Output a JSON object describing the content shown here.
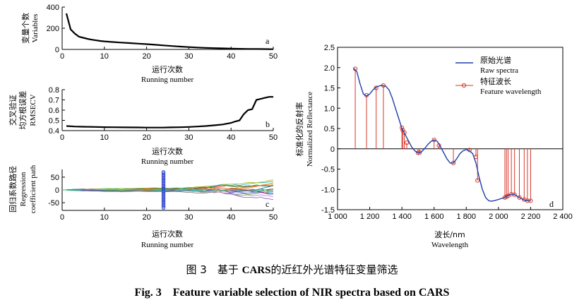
{
  "chart_data": [
    {
      "panel": "a",
      "type": "line",
      "ylabel_zh": "变量个数",
      "ylabel_en": "Variables",
      "xlabel_zh": "运行次数",
      "xlabel_en": "Running number",
      "xlim": [
        0,
        50
      ],
      "ylim": [
        0,
        400
      ],
      "xticks": [
        "0",
        "10",
        "20",
        "30",
        "40",
        "50"
      ],
      "yticks": [
        "0",
        "200",
        "400"
      ],
      "x": [
        1,
        2,
        3,
        4,
        5,
        6,
        7,
        8,
        9,
        10,
        12,
        14,
        16,
        18,
        20,
        22,
        24,
        26,
        28,
        30,
        32,
        34,
        36,
        38,
        40,
        42,
        44,
        46,
        48,
        50
      ],
      "values": [
        340,
        190,
        150,
        120,
        110,
        100,
        92,
        86,
        80,
        76,
        70,
        65,
        60,
        55,
        50,
        44,
        38,
        32,
        27,
        22,
        18,
        15,
        12,
        10,
        8,
        6,
        5,
        4,
        3,
        2
      ]
    },
    {
      "panel": "b",
      "type": "line",
      "ylabel_zh1": "交叉验证",
      "ylabel_zh2": "均方根误差",
      "ylabel_en": "RMSECV",
      "xlabel_zh": "运行次数",
      "xlabel_en": "Running number",
      "xlim": [
        0,
        50
      ],
      "ylim": [
        0.4,
        0.8
      ],
      "xticks": [
        "0",
        "10",
        "20",
        "30",
        "40",
        "50"
      ],
      "yticks": [
        "0.4",
        "0.5",
        "0.6",
        "0.7",
        "0.8"
      ],
      "x": [
        1,
        3,
        5,
        8,
        10,
        12,
        15,
        18,
        20,
        22,
        24,
        25,
        26,
        28,
        30,
        32,
        34,
        36,
        38,
        40,
        41,
        42,
        43,
        44,
        45,
        46,
        47,
        48,
        49,
        50
      ],
      "values": [
        0.445,
        0.44,
        0.438,
        0.436,
        0.434,
        0.433,
        0.432,
        0.431,
        0.43,
        0.43,
        0.43,
        0.431,
        0.432,
        0.433,
        0.436,
        0.44,
        0.445,
        0.452,
        0.46,
        0.475,
        0.49,
        0.5,
        0.56,
        0.6,
        0.61,
        0.7,
        0.71,
        0.72,
        0.73,
        0.73
      ]
    },
    {
      "panel": "c",
      "type": "line",
      "ylabel_zh": "回归系数路径",
      "ylabel_en1": "Regression",
      "ylabel_en2": "coefficient path",
      "xlabel_zh": "运行次数",
      "xlabel_en": "Running number",
      "xlim": [
        0,
        50
      ],
      "ylim": [
        -80,
        80
      ],
      "xticks": [
        "0",
        "10",
        "20",
        "30",
        "40",
        "50"
      ],
      "yticks": [
        "-50",
        "0",
        "50"
      ],
      "marker_x": 24
    },
    {
      "panel": "d",
      "type": "line",
      "ylabel_zh": "标准化的反射率",
      "ylabel_en": "Normalized Reflectance",
      "xlabel_zh": "波长/nm",
      "xlabel_en": "Wavelength",
      "xlim": [
        1000,
        2400
      ],
      "ylim": [
        -1.5,
        2.5
      ],
      "xticks": [
        "1 000",
        "1 200",
        "1 400",
        "1 600",
        "1 800",
        "2 000",
        "2 200",
        "2 400"
      ],
      "yticks": [
        "-1.5",
        "-1.0",
        "-0.5",
        "0",
        "0.5",
        "1.0",
        "1.5",
        "2.0",
        "2.5"
      ],
      "legend": [
        {
          "zh": "原始光谱",
          "en": "Raw spectra",
          "color": "#1f3fa8"
        },
        {
          "zh": "特征波长",
          "en": "Feature wavelength",
          "color": "#d8372a"
        }
      ],
      "spectrum_x": [
        1100,
        1120,
        1140,
        1160,
        1180,
        1200,
        1220,
        1240,
        1260,
        1280,
        1300,
        1320,
        1340,
        1360,
        1380,
        1400,
        1420,
        1440,
        1460,
        1480,
        1500,
        1520,
        1540,
        1560,
        1580,
        1600,
        1620,
        1640,
        1660,
        1680,
        1700,
        1720,
        1740,
        1760,
        1780,
        1800,
        1820,
        1840,
        1860,
        1880,
        1900,
        1920,
        1940,
        1960,
        1980,
        2000,
        2020,
        2040,
        2060,
        2080,
        2100,
        2120,
        2140,
        2160,
        2180,
        2200
      ],
      "spectrum_y": [
        1.98,
        1.9,
        1.6,
        1.35,
        1.3,
        1.35,
        1.45,
        1.52,
        1.55,
        1.56,
        1.54,
        1.45,
        1.25,
        1.0,
        0.75,
        0.5,
        0.35,
        0.2,
        0.05,
        -0.05,
        -0.1,
        -0.08,
        0.0,
        0.1,
        0.18,
        0.22,
        0.18,
        0.05,
        -0.1,
        -0.25,
        -0.35,
        -0.35,
        -0.25,
        -0.12,
        -0.05,
        -0.02,
        -0.05,
        -0.12,
        -0.35,
        -0.7,
        -1.0,
        -1.2,
        -1.28,
        -1.29,
        -1.27,
        -1.25,
        -1.22,
        -1.2,
        -1.15,
        -1.12,
        -1.13,
        -1.18,
        -1.22,
        -1.26,
        -1.28,
        -1.28
      ],
      "features_x": [
        1110,
        1180,
        1240,
        1285,
        1400,
        1405,
        1415,
        1430,
        1500,
        1510,
        1600,
        1630,
        1720,
        1820,
        1860,
        1870,
        2040,
        2050,
        2060,
        2080,
        2100,
        2130,
        2160,
        2180,
        2200
      ],
      "features_y": [
        1.97,
        1.32,
        1.5,
        1.56,
        0.52,
        0.46,
        0.4,
        0.15,
        -0.1,
        -0.09,
        0.22,
        0.08,
        -0.35,
        -0.03,
        -0.2,
        -0.78,
        -1.2,
        -1.18,
        -1.16,
        -1.12,
        -1.13,
        -1.2,
        -1.25,
        -1.28,
        -1.28
      ]
    }
  ],
  "caption": {
    "zh_prefix": "图 3　基于",
    "zh_bold": "CARS",
    "zh_suffix": "的近红外光谱特征变量筛选",
    "en": "Fig. 3　Feature variable selection of NIR spectra based on CARS"
  }
}
